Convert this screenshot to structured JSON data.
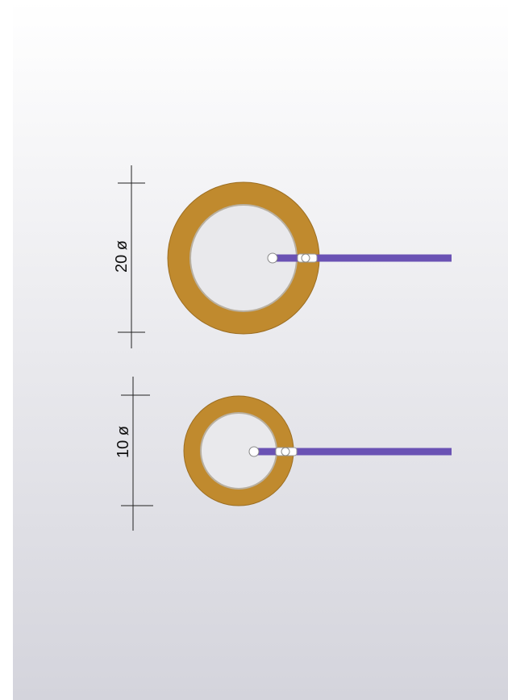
{
  "colors": {
    "background_top": "#ffffff",
    "background_bottom": "#d4d4dc",
    "brass": "#c08a2e",
    "brass_edge": "#9c6e22",
    "ceramic": "#e9e9ec",
    "wire": "#6a52b4",
    "solder": "#ffffff",
    "dimension_line": "#222222"
  },
  "icons": {
    "disc": "piezo-disc-icon",
    "wire": "lead-wire-icon"
  },
  "disc_large": {
    "dimension_label": "20 ø"
  },
  "disc_small": {
    "dimension_label": "10 ø"
  }
}
